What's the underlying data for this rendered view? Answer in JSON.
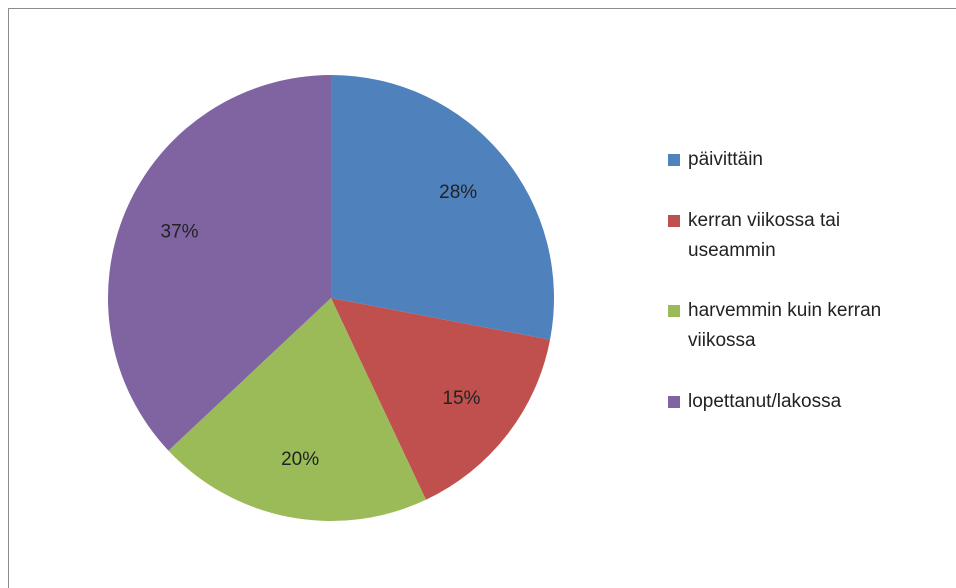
{
  "chart_data": {
    "type": "pie",
    "categories": [
      "päivittäin",
      "kerran viikossa tai useammin",
      "harvemmin kuin kerran viikossa",
      "lopettanut/lakossa"
    ],
    "values": [
      28,
      15,
      20,
      37
    ],
    "value_labels": [
      "28%",
      "15%",
      "20%",
      "37%"
    ],
    "colors": [
      "#4f81bd",
      "#c0504d",
      "#9bbb59",
      "#8064a2"
    ],
    "legend": "right"
  }
}
